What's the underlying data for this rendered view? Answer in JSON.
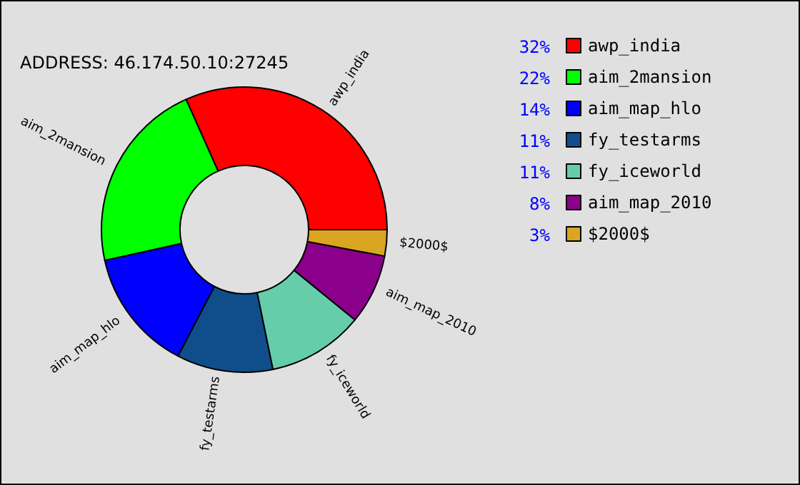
{
  "chart_data": {
    "type": "donut",
    "title": "ADDRESS: 46.174.50.10:27245",
    "categories": [
      "awp_india",
      "aim_2mansion",
      "aim_map_hlo",
      "fy_testarms",
      "fy_iceworld",
      "aim_map_2010",
      "$2000$"
    ],
    "values": [
      32,
      22,
      14,
      11,
      11,
      8,
      3
    ],
    "value_labels": [
      "32%",
      "22%",
      "14%",
      "11%",
      "11%",
      "8%",
      "3%"
    ],
    "colors": [
      "#ff0000",
      "#00ff00",
      "#0000ff",
      "#104e8b",
      "#66cdaa",
      "#8b008b",
      "#daa520"
    ],
    "legend": "right"
  }
}
